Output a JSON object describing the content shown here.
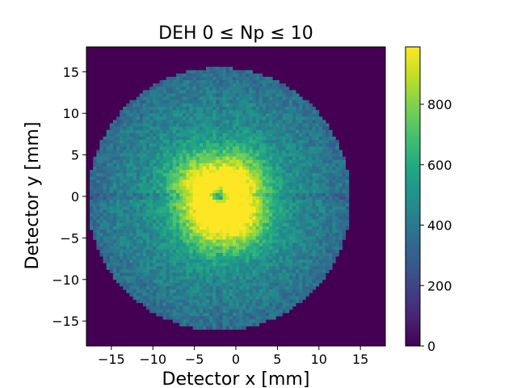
{
  "chart_data": {
    "type": "heatmap",
    "title": "DEH 0 ≤ Np ≤ 10",
    "xlabel": "Detector x [mm]",
    "ylabel": "Detector y [mm]",
    "xlim": [
      -18,
      18
    ],
    "ylim": [
      -18,
      18
    ],
    "xticks": [
      -15,
      -10,
      -5,
      0,
      5,
      10,
      15
    ],
    "yticks": [
      -15,
      -10,
      -5,
      0,
      5,
      10,
      15
    ],
    "colorbar": {
      "range": [
        0,
        990
      ],
      "ticks": [
        0,
        200,
        400,
        600,
        800
      ],
      "colormap": "viridis"
    },
    "detector": {
      "center_x_mm": -2,
      "center_y_mm": -0.3,
      "radius_mm": 15.8,
      "baseline_counts": 500,
      "hot_regions": [
        {
          "x": 0,
          "y": 2,
          "value": 900
        },
        {
          "x": -4.5,
          "y": 1.5,
          "value": 880
        },
        {
          "x": -3,
          "y": -3,
          "value": 880
        },
        {
          "x": 0.5,
          "y": -2.5,
          "value": 860
        }
      ],
      "center_dip": {
        "x": -2,
        "y": 0,
        "value": 250
      }
    }
  }
}
